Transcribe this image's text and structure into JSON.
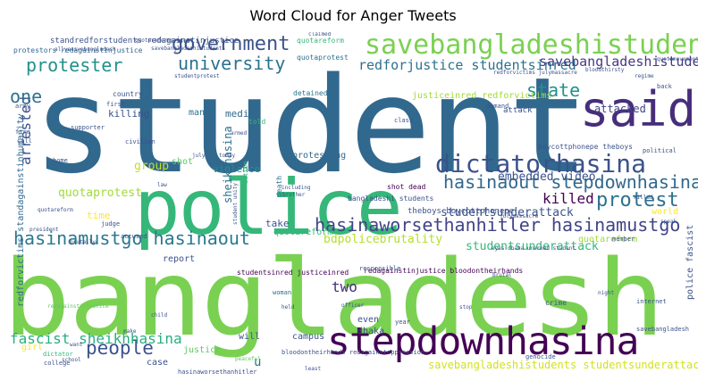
{
  "title": "Word Cloud for Anger Tweets",
  "palette": {
    "purple": "#440154",
    "indigo": "#472d7b",
    "blue": "#3b528b",
    "teal_blue": "#2c728e",
    "teal": "#21918c",
    "green_teal": "#28ae80",
    "green": "#5ec962",
    "lime": "#addc30",
    "yellow": "#d2e21b",
    "light_yellow": "#fde725"
  },
  "words": [
    {
      "text": "student",
      "color": "#31688e"
    },
    {
      "text": "bangladesh",
      "color": "#7ad151"
    },
    {
      "text": "police",
      "color": "#35b779"
    },
    {
      "text": "stepdownhasina",
      "color": "#440154"
    },
    {
      "text": "savebangladeshistudents",
      "color": "#7ad151"
    },
    {
      "text": "said",
      "color": "#472d7b"
    },
    {
      "text": "government",
      "color": "#3b528b"
    },
    {
      "text": "dictatorhasina",
      "color": "#3b528b"
    },
    {
      "text": "university",
      "color": "#2c728e"
    },
    {
      "text": "protester",
      "color": "#21918c"
    },
    {
      "text": "hasinaworsethanhitler hasinamustgo",
      "color": "#414487"
    },
    {
      "text": "hasinamustgo hasinaout",
      "color": "#2a788e"
    },
    {
      "text": "hasinaout stepdownhasina",
      "color": "#31688e"
    },
    {
      "text": "protest",
      "color": "#2c728e"
    },
    {
      "text": "people",
      "color": "#3b528b"
    },
    {
      "text": "arrested",
      "color": "#3b528b"
    },
    {
      "text": "fascist sheikhhasina",
      "color": "#28ae80"
    },
    {
      "text": "one",
      "color": "#2c728e"
    },
    {
      "text": "state",
      "color": "#21918c"
    },
    {
      "text": "killed",
      "color": "#440154"
    },
    {
      "text": "redforjustice studentsinred",
      "color": "#2c728e"
    },
    {
      "text": "savebangladeshistudents",
      "color": "#443983"
    },
    {
      "text": "standredforstudents redagainstinjustice",
      "color": "#3b528b"
    },
    {
      "text": "quotaprotest",
      "color": "#a0da39"
    },
    {
      "text": "bdpolicebrutality",
      "color": "#b5de2b"
    },
    {
      "text": "studentsunderattack",
      "color": "#3b528b"
    },
    {
      "text": "embedded video",
      "color": "#3b528b"
    },
    {
      "text": "attacked",
      "color": "#414487"
    },
    {
      "text": "justiceinred redforvictims",
      "color": "#a0da39"
    },
    {
      "text": "protestors redagainstinjustice",
      "color": "#31688e"
    },
    {
      "text": "sheikhhasina",
      "color": "#2c728e"
    },
    {
      "text": "two",
      "color": "#472d7b"
    },
    {
      "text": "group",
      "color": "#c2df23"
    },
    {
      "text": "violence",
      "color": "#21918c"
    },
    {
      "text": "protesting",
      "color": "#31688e"
    },
    {
      "text": "dhaka",
      "color": "#3b528b"
    },
    {
      "text": "savebangladeshistudents studentsunderattack",
      "color": "#d2e21b"
    },
    {
      "text": "quotareform",
      "color": "#a0da39"
    },
    {
      "text": "studentsunderattack",
      "color": "#35b779"
    },
    {
      "text": "redforvictims standagainstinhumanity",
      "color": "#31688e"
    },
    {
      "text": "killing",
      "color": "#3b528b"
    },
    {
      "text": "media",
      "color": "#31688e"
    },
    {
      "text": "man",
      "color": "#2c728e"
    },
    {
      "text": "shot",
      "color": "#5ec962"
    },
    {
      "text": "time",
      "color": "#fde725"
    },
    {
      "text": "take",
      "color": "#3b528b"
    },
    {
      "text": "world",
      "color": "#fde725"
    },
    {
      "text": "report",
      "color": "#3b528b"
    },
    {
      "text": "girl",
      "color": "#fde725"
    },
    {
      "text": "will",
      "color": "#3b528b"
    },
    {
      "text": "campus",
      "color": "#3b528b"
    },
    {
      "text": "case",
      "color": "#3b528b"
    },
    {
      "text": "justice",
      "color": "#5ec962"
    },
    {
      "text": "even",
      "color": "#3b528b"
    },
    {
      "text": "u",
      "color": "#2c728e"
    },
    {
      "text": "police fascist",
      "color": "#3b528b"
    },
    {
      "text": "theboys boycottphonepe",
      "color": "#3b528b"
    },
    {
      "text": "quotareform",
      "color": "#35b779"
    },
    {
      "text": "redagainstinjustice bloodontheirhands",
      "color": "#440154"
    },
    {
      "text": "studentsinred justiceinred",
      "color": "#440154"
    },
    {
      "text": "boycottphonepe theboys",
      "color": "#3b528b"
    },
    {
      "text": "bangladeshi students",
      "color": "#3b528b"
    },
    {
      "text": "quotareform",
      "color": "#35b779"
    },
    {
      "text": "country",
      "color": "#3b528b"
    },
    {
      "text": "detained",
      "color": "#2c728e"
    },
    {
      "text": "shot dead",
      "color": "#440154"
    },
    {
      "text": "quotaprotest",
      "color": "#2c728e"
    },
    {
      "text": "bloodontheirhands redagainstoppression",
      "color": "#3b528b"
    },
    {
      "text": "hasinaworsethanhitler",
      "color": "#3b528b"
    },
    {
      "text": "told",
      "color": "#35b779"
    },
    {
      "text": "attack",
      "color": "#3b528b"
    },
    {
      "text": "genocide",
      "color": "#3b528b"
    },
    {
      "text": "crime",
      "color": "#3b528b"
    },
    {
      "text": "responsible",
      "color": "#3b528b"
    },
    {
      "text": "woman",
      "color": "#2c728e"
    },
    {
      "text": "political",
      "color": "#3b528b"
    },
    {
      "text": "internet",
      "color": "#3b528b"
    },
    {
      "text": "savebangladesh",
      "color": "#3b528b"
    },
    {
      "text": "first",
      "color": "#3b528b"
    },
    {
      "text": "civilian",
      "color": "#3b528b"
    },
    {
      "text": "supporter",
      "color": "#3b528b"
    },
    {
      "text": "member",
      "color": "#3b528b"
    },
    {
      "text": "quotamovement",
      "color": "#3b528b"
    },
    {
      "text": "accused",
      "color": "#3b528b"
    },
    {
      "text": "dictator",
      "color": "#35b779"
    },
    {
      "text": "college",
      "color": "#3b528b"
    },
    {
      "text": "peaceful",
      "color": "#5ec962"
    },
    {
      "text": "judge",
      "color": "#3b528b"
    },
    {
      "text": "fire",
      "color": "#3b528b"
    },
    {
      "text": "army",
      "color": "#3b528b"
    },
    {
      "text": "call",
      "color": "#3b528b"
    },
    {
      "text": "home",
      "color": "#3b528b"
    },
    {
      "text": "death",
      "color": "#2c728e"
    },
    {
      "text": "year",
      "color": "#3b528b"
    },
    {
      "text": "demand",
      "color": "#3b528b"
    },
    {
      "text": "class",
      "color": "#3b528b"
    },
    {
      "text": "action",
      "color": "#35b779"
    },
    {
      "text": "law",
      "color": "#3b528b"
    },
    {
      "text": "including",
      "color": "#3b528b"
    },
    {
      "text": "brother",
      "color": "#3b528b"
    },
    {
      "text": "armed",
      "color": "#3b528b"
    },
    {
      "text": "killed",
      "color": "#3b528b"
    },
    {
      "text": "regime",
      "color": "#3b528b"
    },
    {
      "text": "back",
      "color": "#3b528b"
    },
    {
      "text": "president",
      "color": "#3b528b"
    },
    {
      "text": "quotareform",
      "color": "#3b528b"
    },
    {
      "text": "speak",
      "color": "#3b528b"
    },
    {
      "text": "julymassacre",
      "color": "#3b528b"
    },
    {
      "text": "claimed",
      "color": "#3b528b"
    },
    {
      "text": "student unity",
      "color": "#3b528b"
    },
    {
      "text": "redforvictims julymassacre",
      "color": "#3b528b"
    },
    {
      "text": "redagainstinjustice",
      "color": "#5ec962"
    },
    {
      "text": "allyeasvebangladesh",
      "color": "#3b528b"
    },
    {
      "text": "savebangladeshistudents",
      "color": "#3b528b"
    },
    {
      "text": "studentprotest",
      "color": "#3b528b"
    },
    {
      "text": "quotareformprotest",
      "color": "#3b528b"
    },
    {
      "text": "july",
      "color": "#3b528b"
    },
    {
      "text": "today",
      "color": "#3b528b"
    },
    {
      "text": "officer",
      "color": "#3b528b"
    },
    {
      "text": "child",
      "color": "#3b528b"
    },
    {
      "text": "brutal",
      "color": "#3b528b"
    },
    {
      "text": "stop",
      "color": "#3b528b"
    },
    {
      "text": "want",
      "color": "#3b528b"
    },
    {
      "text": "make",
      "color": "#3b528b"
    },
    {
      "text": "held",
      "color": "#3b528b"
    },
    {
      "text": "brutally",
      "color": "#3b528b"
    },
    {
      "text": "night",
      "color": "#3b528b"
    },
    {
      "text": "school",
      "color": "#3b528b"
    },
    {
      "text": "least",
      "color": "#3b528b"
    },
    {
      "text": "eyes dhaka unarmed student",
      "color": "#3b528b"
    },
    {
      "text": "bloodthirsty",
      "color": "#3b528b"
    }
  ]
}
